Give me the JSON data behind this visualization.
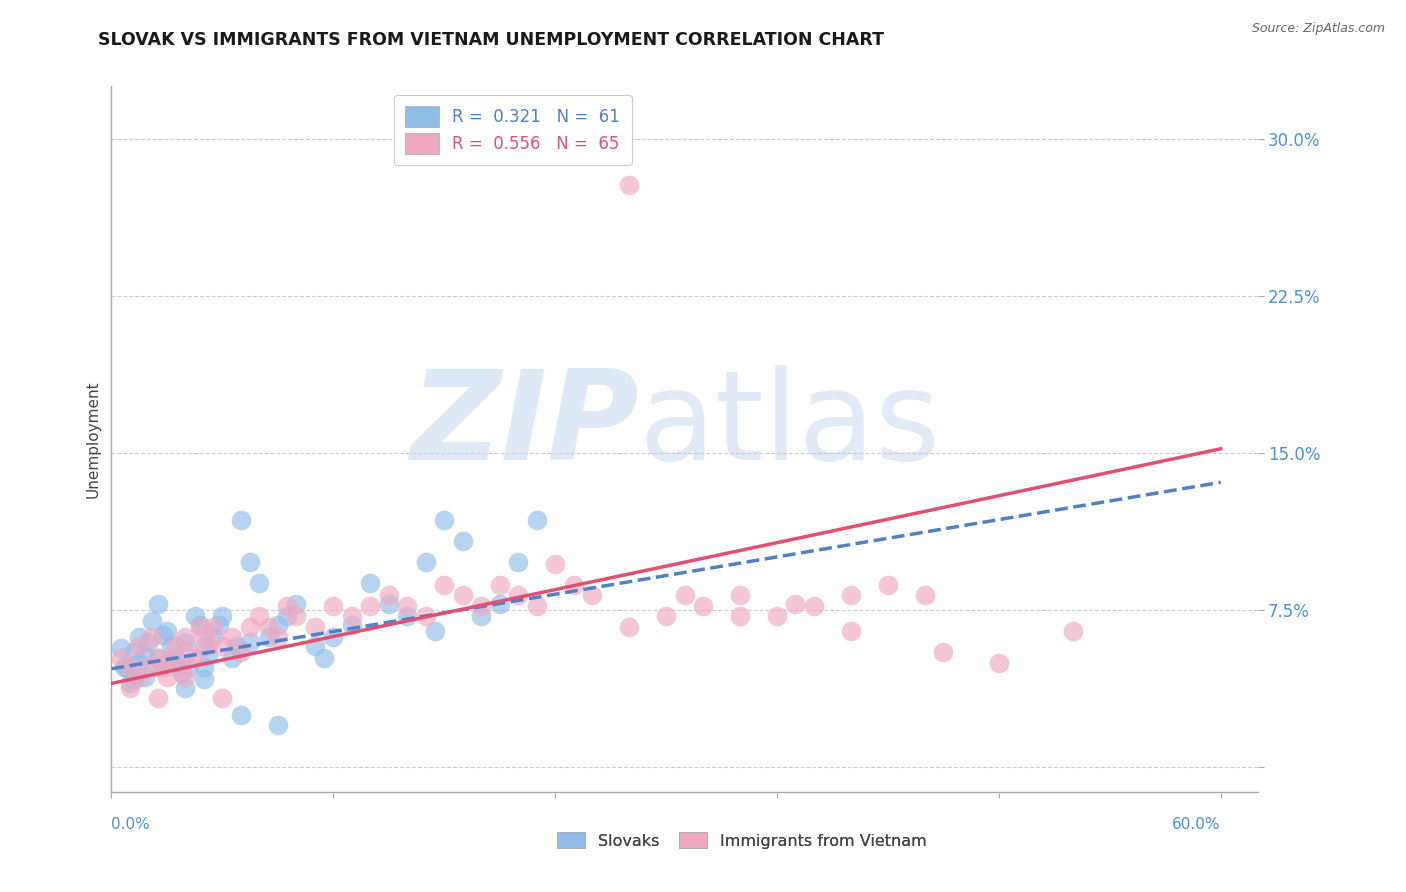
{
  "title": "SLOVAK VS IMMIGRANTS FROM VIETNAM UNEMPLOYMENT CORRELATION CHART",
  "source": "Source: ZipAtlas.com",
  "ylabel": "Unemployment",
  "yticks": [
    0.0,
    0.075,
    0.15,
    0.225,
    0.3
  ],
  "ytick_labels": [
    "",
    "7.5%",
    "15.0%",
    "22.5%",
    "30.0%"
  ],
  "xlim": [
    0.0,
    0.62
  ],
  "ylim": [
    -0.012,
    0.325
  ],
  "blue_scatter_color": "#90bce8",
  "pink_scatter_color": "#f0a8c0",
  "blue_line_color": "#5080c8",
  "pink_line_color": "#e05070",
  "legend_label_blue": "R =  0.321   N =  61",
  "legend_label_pink": "R =  0.556   N =  65",
  "legend_bottom_blue": "Slovaks",
  "legend_bottom_pink": "Immigrants from Vietnam",
  "blue_line_x": [
    0.0,
    0.6
  ],
  "blue_line_y": [
    0.047,
    0.136
  ],
  "pink_line_x": [
    0.0,
    0.6
  ],
  "pink_line_y": [
    0.04,
    0.152
  ],
  "slovaks_x": [
    0.005,
    0.008,
    0.01,
    0.012,
    0.015,
    0.015,
    0.018,
    0.02,
    0.022,
    0.025,
    0.025,
    0.028,
    0.03,
    0.03,
    0.032,
    0.035,
    0.038,
    0.04,
    0.04,
    0.042,
    0.045,
    0.048,
    0.05,
    0.05,
    0.052,
    0.055,
    0.058,
    0.06,
    0.065,
    0.068,
    0.07,
    0.075,
    0.075,
    0.08,
    0.085,
    0.09,
    0.095,
    0.1,
    0.11,
    0.115,
    0.12,
    0.13,
    0.14,
    0.15,
    0.16,
    0.17,
    0.175,
    0.18,
    0.19,
    0.2,
    0.21,
    0.22,
    0.23,
    0.007,
    0.012,
    0.018,
    0.025,
    0.035,
    0.05,
    0.07,
    0.09
  ],
  "slovaks_y": [
    0.057,
    0.048,
    0.04,
    0.055,
    0.062,
    0.05,
    0.053,
    0.06,
    0.07,
    0.078,
    0.052,
    0.063,
    0.05,
    0.065,
    0.058,
    0.052,
    0.045,
    0.038,
    0.06,
    0.048,
    0.072,
    0.068,
    0.058,
    0.042,
    0.053,
    0.062,
    0.068,
    0.072,
    0.052,
    0.058,
    0.118,
    0.098,
    0.06,
    0.088,
    0.062,
    0.068,
    0.072,
    0.078,
    0.058,
    0.052,
    0.062,
    0.068,
    0.088,
    0.078,
    0.072,
    0.098,
    0.065,
    0.118,
    0.108,
    0.072,
    0.078,
    0.098,
    0.118,
    0.048,
    0.042,
    0.043,
    0.048,
    0.05,
    0.048,
    0.025,
    0.02
  ],
  "vietnam_x": [
    0.005,
    0.01,
    0.015,
    0.015,
    0.02,
    0.022,
    0.025,
    0.028,
    0.03,
    0.032,
    0.035,
    0.038,
    0.04,
    0.042,
    0.045,
    0.048,
    0.05,
    0.052,
    0.055,
    0.06,
    0.065,
    0.07,
    0.075,
    0.08,
    0.085,
    0.09,
    0.095,
    0.1,
    0.11,
    0.12,
    0.13,
    0.14,
    0.15,
    0.16,
    0.17,
    0.18,
    0.19,
    0.2,
    0.21,
    0.22,
    0.23,
    0.24,
    0.25,
    0.26,
    0.28,
    0.3,
    0.32,
    0.34,
    0.36,
    0.38,
    0.4,
    0.42,
    0.44,
    0.01,
    0.025,
    0.04,
    0.06,
    0.34,
    0.37,
    0.4,
    0.45,
    0.48,
    0.52,
    0.28,
    0.31
  ],
  "vietnam_y": [
    0.052,
    0.048,
    0.043,
    0.058,
    0.048,
    0.062,
    0.052,
    0.048,
    0.043,
    0.052,
    0.058,
    0.048,
    0.062,
    0.055,
    0.052,
    0.067,
    0.062,
    0.058,
    0.067,
    0.058,
    0.062,
    0.055,
    0.067,
    0.072,
    0.067,
    0.062,
    0.077,
    0.072,
    0.067,
    0.077,
    0.072,
    0.077,
    0.082,
    0.077,
    0.072,
    0.087,
    0.082,
    0.077,
    0.087,
    0.082,
    0.077,
    0.097,
    0.087,
    0.082,
    0.067,
    0.072,
    0.077,
    0.082,
    0.072,
    0.077,
    0.082,
    0.087,
    0.082,
    0.038,
    0.033,
    0.043,
    0.033,
    0.072,
    0.078,
    0.065,
    0.055,
    0.05,
    0.065,
    0.278,
    0.082
  ],
  "background_color": "#ffffff",
  "grid_color": "#cccccc",
  "title_color": "#1a1a1a",
  "tick_label_color": "#4a90d9",
  "ylabel_color": "#444444"
}
